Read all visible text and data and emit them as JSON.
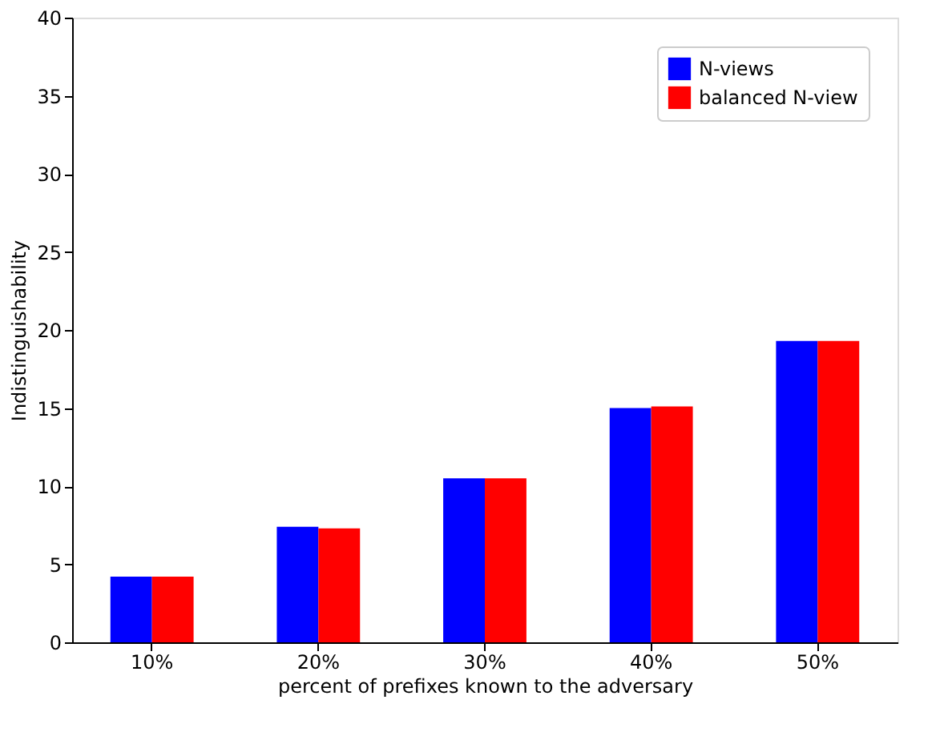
{
  "chart_data": {
    "type": "bar",
    "xlabel": "percent of prefixes known to the adversary",
    "ylabel": "Indistinguishability",
    "categories": [
      "10%",
      "20%",
      "30%",
      "40%",
      "50%"
    ],
    "series": [
      {
        "name": "N-views",
        "color": "#0000ff",
        "values": [
          4.2,
          7.4,
          10.5,
          15.0,
          19.3
        ]
      },
      {
        "name": "balanced N-view",
        "color": "#ff0000",
        "values": [
          4.2,
          7.3,
          10.5,
          15.1,
          19.3
        ]
      }
    ],
    "ylim": [
      0,
      40
    ],
    "yticks": [
      0,
      5,
      10,
      15,
      20,
      25,
      30,
      35,
      40
    ],
    "grid": false,
    "legend": "top right"
  }
}
